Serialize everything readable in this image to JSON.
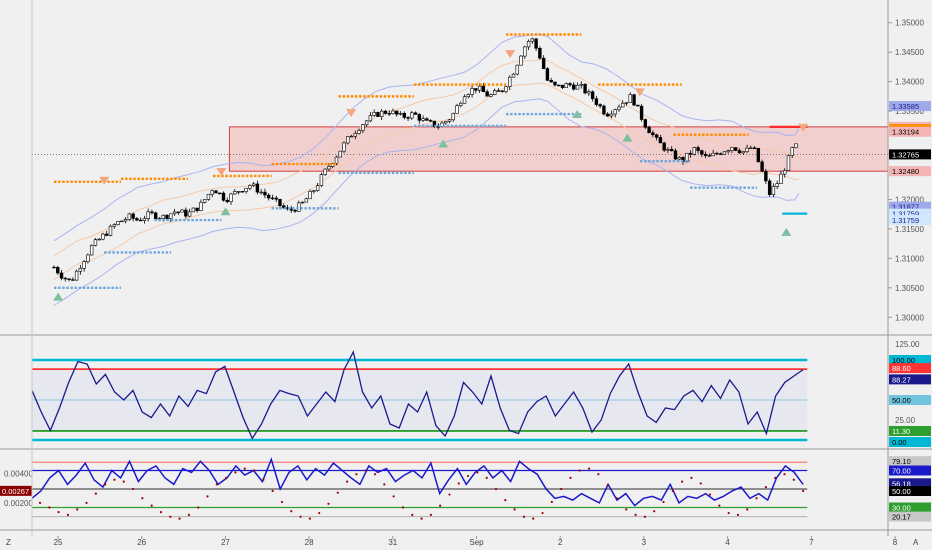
{
  "colors": {
    "background": "#f0f0f0",
    "up_candle": "#ffffff",
    "down_candle": "#000000",
    "resistance_dots": "#ff8c00",
    "support_dots": "#6fa8dc",
    "zone_fill": "#f4b4b4",
    "zone_border": "#d43c3c",
    "band": "#aab4f0",
    "ma": "#f5c9a8",
    "oscillator": "#1a1a8c",
    "level_cyan": "#00b8d4",
    "level_red": "#ff3333",
    "level_green": "#2e9e2e",
    "level_blue": "#1a1acc",
    "dots_red": "#a00000"
  },
  "chart_data": [
    {
      "panel": "price",
      "type": "candlestick",
      "x": [
        "25",
        "26",
        "27",
        "28",
        "31",
        "Sep",
        "2",
        "3",
        "4",
        "7",
        "8"
      ],
      "xtick_labels": [
        "25",
        "26",
        "27",
        "28",
        "31",
        "Sep",
        "2",
        "3",
        "4",
        "7",
        "8"
      ],
      "ylim": [
        1.2975,
        1.3525
      ],
      "yticks": [
        "1.35000",
        "1.34500",
        "1.34000",
        "1.33500",
        "1.32000",
        "1.31500",
        "1.31000",
        "1.30500",
        "1.30000"
      ],
      "close_path": [
        [
          0,
          1.3085
        ],
        [
          0.1,
          1.307
        ],
        [
          0.2,
          1.306
        ],
        [
          0.3,
          1.3085
        ],
        [
          0.45,
          1.312
        ],
        [
          0.6,
          1.314
        ],
        [
          0.75,
          1.316
        ],
        [
          0.9,
          1.317
        ],
        [
          1.0,
          1.3165
        ],
        [
          1.15,
          1.3175
        ],
        [
          1.3,
          1.317
        ],
        [
          1.45,
          1.318
        ],
        [
          1.6,
          1.3175
        ],
        [
          1.75,
          1.319
        ],
        [
          1.9,
          1.322
        ],
        [
          2.05,
          1.32
        ],
        [
          2.2,
          1.3215
        ],
        [
          2.35,
          1.3225
        ],
        [
          2.5,
          1.321
        ],
        [
          2.65,
          1.3195
        ],
        [
          2.8,
          1.318
        ],
        [
          2.95,
          1.319
        ],
        [
          3.1,
          1.3215
        ],
        [
          3.25,
          1.325
        ],
        [
          3.4,
          1.328
        ],
        [
          3.55,
          1.331
        ],
        [
          3.7,
          1.333
        ],
        [
          3.85,
          1.3345
        ],
        [
          4.0,
          1.335
        ],
        [
          4.15,
          1.334
        ],
        [
          4.3,
          1.3345
        ],
        [
          4.45,
          1.333
        ],
        [
          4.6,
          1.3325
        ],
        [
          4.75,
          1.334
        ],
        [
          4.9,
          1.338
        ],
        [
          5.05,
          1.339
        ],
        [
          5.2,
          1.3375
        ],
        [
          5.35,
          1.3385
        ],
        [
          5.5,
          1.342
        ],
        [
          5.6,
          1.3455
        ],
        [
          5.7,
          1.3475
        ],
        [
          5.8,
          1.3445
        ],
        [
          5.9,
          1.34
        ],
        [
          6.0,
          1.339
        ],
        [
          6.15,
          1.3395
        ],
        [
          6.3,
          1.339
        ],
        [
          6.45,
          1.337
        ],
        [
          6.6,
          1.3345
        ],
        [
          6.75,
          1.336
        ],
        [
          6.9,
          1.3375
        ],
        [
          7.05,
          1.333
        ],
        [
          7.2,
          1.33
        ],
        [
          7.35,
          1.328
        ],
        [
          7.5,
          1.3265
        ],
        [
          7.65,
          1.3285
        ],
        [
          7.8,
          1.327
        ],
        [
          7.95,
          1.328
        ],
        [
          8.1,
          1.329
        ],
        [
          8.25,
          1.328
        ],
        [
          8.35,
          1.329
        ],
        [
          8.45,
          1.325
        ],
        [
          8.55,
          1.321
        ],
        [
          8.65,
          1.323
        ],
        [
          8.75,
          1.326
        ],
        [
          8.85,
          1.3295
        ],
        [
          8.9,
          1.32765
        ]
      ],
      "resistance_levels": [
        {
          "x0": 0.0,
          "x1": 0.8,
          "y": 1.323
        },
        {
          "x0": 0.8,
          "x1": 1.6,
          "y": 1.3235
        },
        {
          "x0": 1.9,
          "x1": 2.6,
          "y": 1.324
        },
        {
          "x0": 2.6,
          "x1": 3.4,
          "y": 1.326
        },
        {
          "x0": 3.4,
          "x1": 4.3,
          "y": 1.3375
        },
        {
          "x0": 4.3,
          "x1": 5.4,
          "y": 1.3395
        },
        {
          "x0": 5.4,
          "x1": 6.3,
          "y": 1.348
        },
        {
          "x0": 6.5,
          "x1": 7.5,
          "y": 1.3395
        },
        {
          "x0": 7.4,
          "x1": 8.3,
          "y": 1.331
        }
      ],
      "support_levels": [
        {
          "x0": 0.0,
          "x1": 0.8,
          "y": 1.305
        },
        {
          "x0": 0.6,
          "x1": 1.4,
          "y": 1.311
        },
        {
          "x0": 1.2,
          "x1": 2.0,
          "y": 1.3165
        },
        {
          "x0": 2.6,
          "x1": 3.4,
          "y": 1.3185
        },
        {
          "x0": 3.4,
          "x1": 4.3,
          "y": 1.3245
        },
        {
          "x0": 4.3,
          "x1": 5.4,
          "y": 1.3325
        },
        {
          "x0": 5.4,
          "x1": 6.3,
          "y": 1.3345
        },
        {
          "x0": 7.0,
          "x1": 7.6,
          "y": 1.3265
        },
        {
          "x0": 7.6,
          "x1": 8.4,
          "y": 1.322
        }
      ],
      "zone": {
        "x0": 2.0,
        "x1": 9.0,
        "y0": 1.3248,
        "y1": 1.33232
      },
      "down_arrows": [
        [
          0.6,
          1.323
        ],
        [
          2.0,
          1.3245
        ],
        [
          3.55,
          1.3345
        ],
        [
          5.45,
          1.3445
        ],
        [
          7.0,
          1.338
        ],
        [
          8.95,
          1.332
        ]
      ],
      "up_arrows": [
        [
          0.05,
          1.3035
        ],
        [
          2.05,
          1.318
        ],
        [
          4.65,
          1.3295
        ],
        [
          6.25,
          1.3345
        ],
        [
          6.85,
          1.3305
        ],
        [
          8.75,
          1.3145
        ]
      ],
      "price_tags": [
        {
          "label": "1.33585",
          "y": 1.33585,
          "color": "#9fa8e8",
          "text_color": "#1a1a8c"
        },
        {
          "label": "1.33232",
          "y": 1.33232,
          "color": "#f4b4b4",
          "text_color": "#000000"
        },
        {
          "label": "1.33194",
          "y": 1.33194,
          "color": "#ff8c00",
          "text_color": "#000000"
        },
        {
          "label": "1.33194",
          "y": 1.3315,
          "color": "#f4b4b4",
          "text_color": "#000000"
        },
        {
          "label": "1.32765",
          "y": 1.32765,
          "color": "#000000",
          "text_color": "#ffffff"
        },
        {
          "label": "1.32480",
          "y": 1.3248,
          "color": "#f4b4b4",
          "text_color": "#000000"
        },
        {
          "label": "1.31877",
          "y": 1.31877,
          "color": "#9fa8e8",
          "text_color": "#1a1a8c"
        },
        {
          "label": "1.31759",
          "y": 1.31759,
          "color": "#d0e8ff",
          "text_color": "#1a1a8c"
        },
        {
          "label": "1.31759",
          "y": 1.3165,
          "color": "#d0e8ff",
          "text_color": "#1a1a8c"
        }
      ]
    },
    {
      "panel": "oscillator1",
      "type": "line",
      "ylim": [
        0,
        100
      ],
      "yticks": [
        "125.00",
        "75.00",
        "25.00"
      ],
      "levels": [
        {
          "value": 100,
          "color": "#00b8d4"
        },
        {
          "value": 88.6,
          "color": "#ff3333"
        },
        {
          "value": 50,
          "color": "#6fc4e0"
        },
        {
          "value": 11.3,
          "color": "#2e9e2e"
        },
        {
          "value": 0,
          "color": "#00b8d4"
        }
      ],
      "values": [
        62,
        35,
        12,
        40,
        72,
        98,
        95,
        70,
        82,
        60,
        50,
        62,
        35,
        28,
        45,
        30,
        55,
        42,
        62,
        58,
        85,
        92,
        60,
        28,
        2,
        20,
        45,
        62,
        58,
        55,
        30,
        45,
        60,
        48,
        88,
        110,
        60,
        40,
        55,
        20,
        15,
        45,
        35,
        60,
        18,
        5,
        30,
        72,
        60,
        45,
        80,
        40,
        12,
        8,
        35,
        48,
        55,
        30,
        45,
        60,
        40,
        10,
        25,
        58,
        80,
        95,
        60,
        30,
        22,
        40,
        38,
        55,
        62,
        48,
        68,
        52,
        75,
        60,
        20,
        35,
        8,
        55,
        72,
        80,
        88
      ],
      "price_tags": [
        {
          "label": "100.00",
          "color": "#00b8d4",
          "text_color": "#000000"
        },
        {
          "label": "88.60",
          "color": "#ff3333",
          "text_color": "#ffffff"
        },
        {
          "label": "88.27",
          "color": "#1a1a8c",
          "text_color": "#ffffff"
        },
        {
          "label": "50.00",
          "color": "#6fc4e0",
          "text_color": "#000000"
        },
        {
          "label": "11.30",
          "color": "#2e9e2e",
          "text_color": "#ffffff"
        },
        {
          "label": "0.00",
          "color": "#00b8d4",
          "text_color": "#000000"
        }
      ]
    },
    {
      "panel": "oscillator2",
      "type": "line",
      "ylim": [
        10,
        90
      ],
      "yticks_left": [
        "0.00400",
        "0.00200"
      ],
      "left_tag": "0.00267",
      "levels": [
        {
          "value": 70,
          "color": "#1a1acc"
        },
        {
          "value": 50,
          "color": "#555555"
        },
        {
          "value": 30,
          "color": "#2e9e2e"
        }
      ],
      "values": [
        40,
        48,
        62,
        70,
        55,
        65,
        78,
        60,
        52,
        70,
        62,
        80,
        58,
        70,
        75,
        62,
        55,
        72,
        68,
        80,
        70,
        55,
        62,
        75,
        65,
        70,
        58,
        82,
        50,
        68,
        75,
        60,
        72,
        65,
        78,
        70,
        62,
        55,
        75,
        68,
        72,
        58,
        65,
        70,
        62,
        78,
        45,
        60,
        72,
        55,
        68,
        75,
        62,
        70,
        58,
        80,
        72,
        66,
        50,
        40,
        42,
        38,
        45,
        40,
        35,
        55,
        38,
        45,
        32,
        40,
        42,
        38,
        55,
        35,
        42,
        40,
        45,
        38,
        42,
        48,
        52,
        40,
        45,
        38,
        62,
        75,
        68,
        55
      ],
      "dots": [
        35,
        30,
        25,
        22,
        28,
        35,
        45,
        55,
        60,
        58,
        50,
        40,
        32,
        25,
        20,
        18,
        22,
        30,
        42,
        55,
        62,
        68,
        72,
        70,
        60,
        48,
        36,
        26,
        20,
        18,
        24,
        34,
        46,
        58,
        66,
        70,
        66,
        55,
        42,
        30,
        22,
        18,
        22,
        32,
        44,
        56,
        64,
        68,
        62,
        50,
        38,
        28,
        20,
        18,
        24,
        36,
        50,
        62,
        70,
        72,
        66,
        54,
        40,
        28,
        22,
        20,
        26,
        36,
        48,
        58,
        62,
        56,
        44,
        32,
        24,
        22,
        28,
        40,
        52,
        62,
        66,
        60,
        48
      ],
      "price_tags": [
        {
          "label": "79.10",
          "color": "#c8c8c8",
          "text_color": "#000000"
        },
        {
          "label": "70.00",
          "color": "#1a1acc",
          "text_color": "#ffffff"
        },
        {
          "label": "56.18",
          "color": "#1a1a8c",
          "text_color": "#ffffff"
        },
        {
          "label": "50.00",
          "color": "#000000",
          "text_color": "#ffffff"
        },
        {
          "label": "30.00",
          "color": "#2e9e2e",
          "text_color": "#ffffff"
        },
        {
          "label": "20.17",
          "color": "#c8c8c8",
          "text_color": "#000000"
        }
      ]
    }
  ],
  "time_axis": {
    "labels": [
      "25",
      "26",
      "27",
      "28",
      "31",
      "Sep",
      "2",
      "3",
      "4",
      "7",
      "8"
    ],
    "left_label": "Z",
    "right_label": "A"
  }
}
